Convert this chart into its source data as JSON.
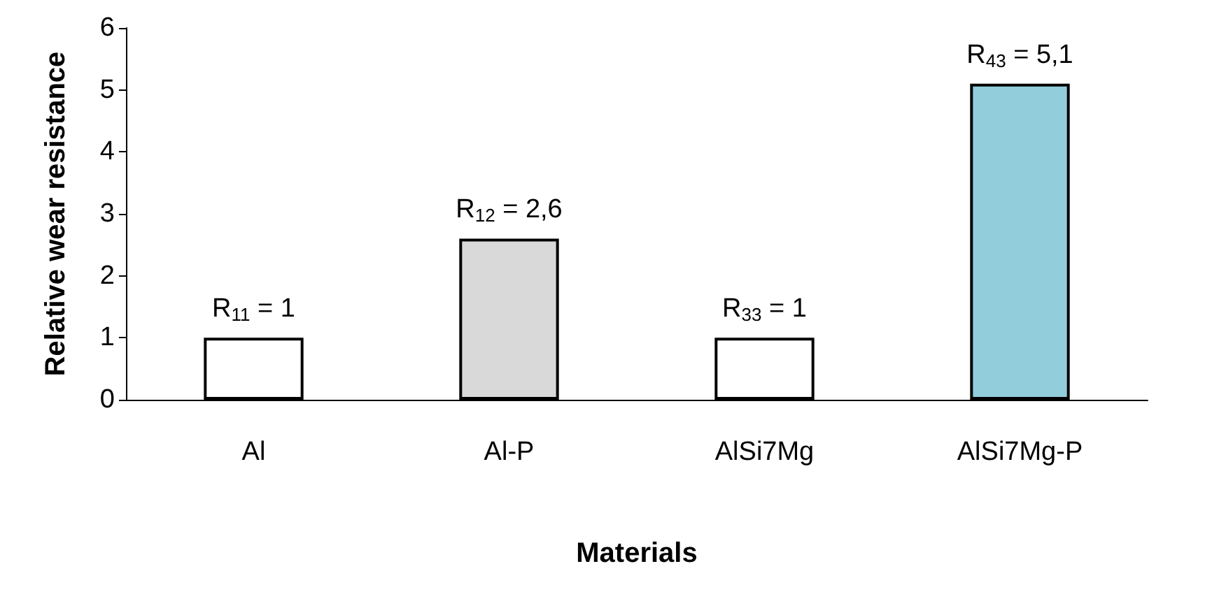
{
  "chart_data": {
    "type": "bar",
    "xlabel": "Materials",
    "ylabel": "Relative wear resistance",
    "categories": [
      "Al",
      "Al-P",
      "AlSi7Mg",
      "AlSi7Mg-P"
    ],
    "values": [
      1,
      2.6,
      1,
      5.1
    ],
    "colors": [
      "#ffffff",
      "#d9d9d9",
      "#ffffff",
      "#92cddc"
    ],
    "value_labels": [
      "R$_{11}$ = 1",
      "R$_{12}$ = 2,6",
      "R$_{33}$ = 1",
      "R$_{43}$ = 5,1"
    ],
    "ylim": [
      0,
      6
    ],
    "yticks": [
      0,
      1,
      2,
      3,
      4,
      5,
      6
    ],
    "grid": false
  }
}
